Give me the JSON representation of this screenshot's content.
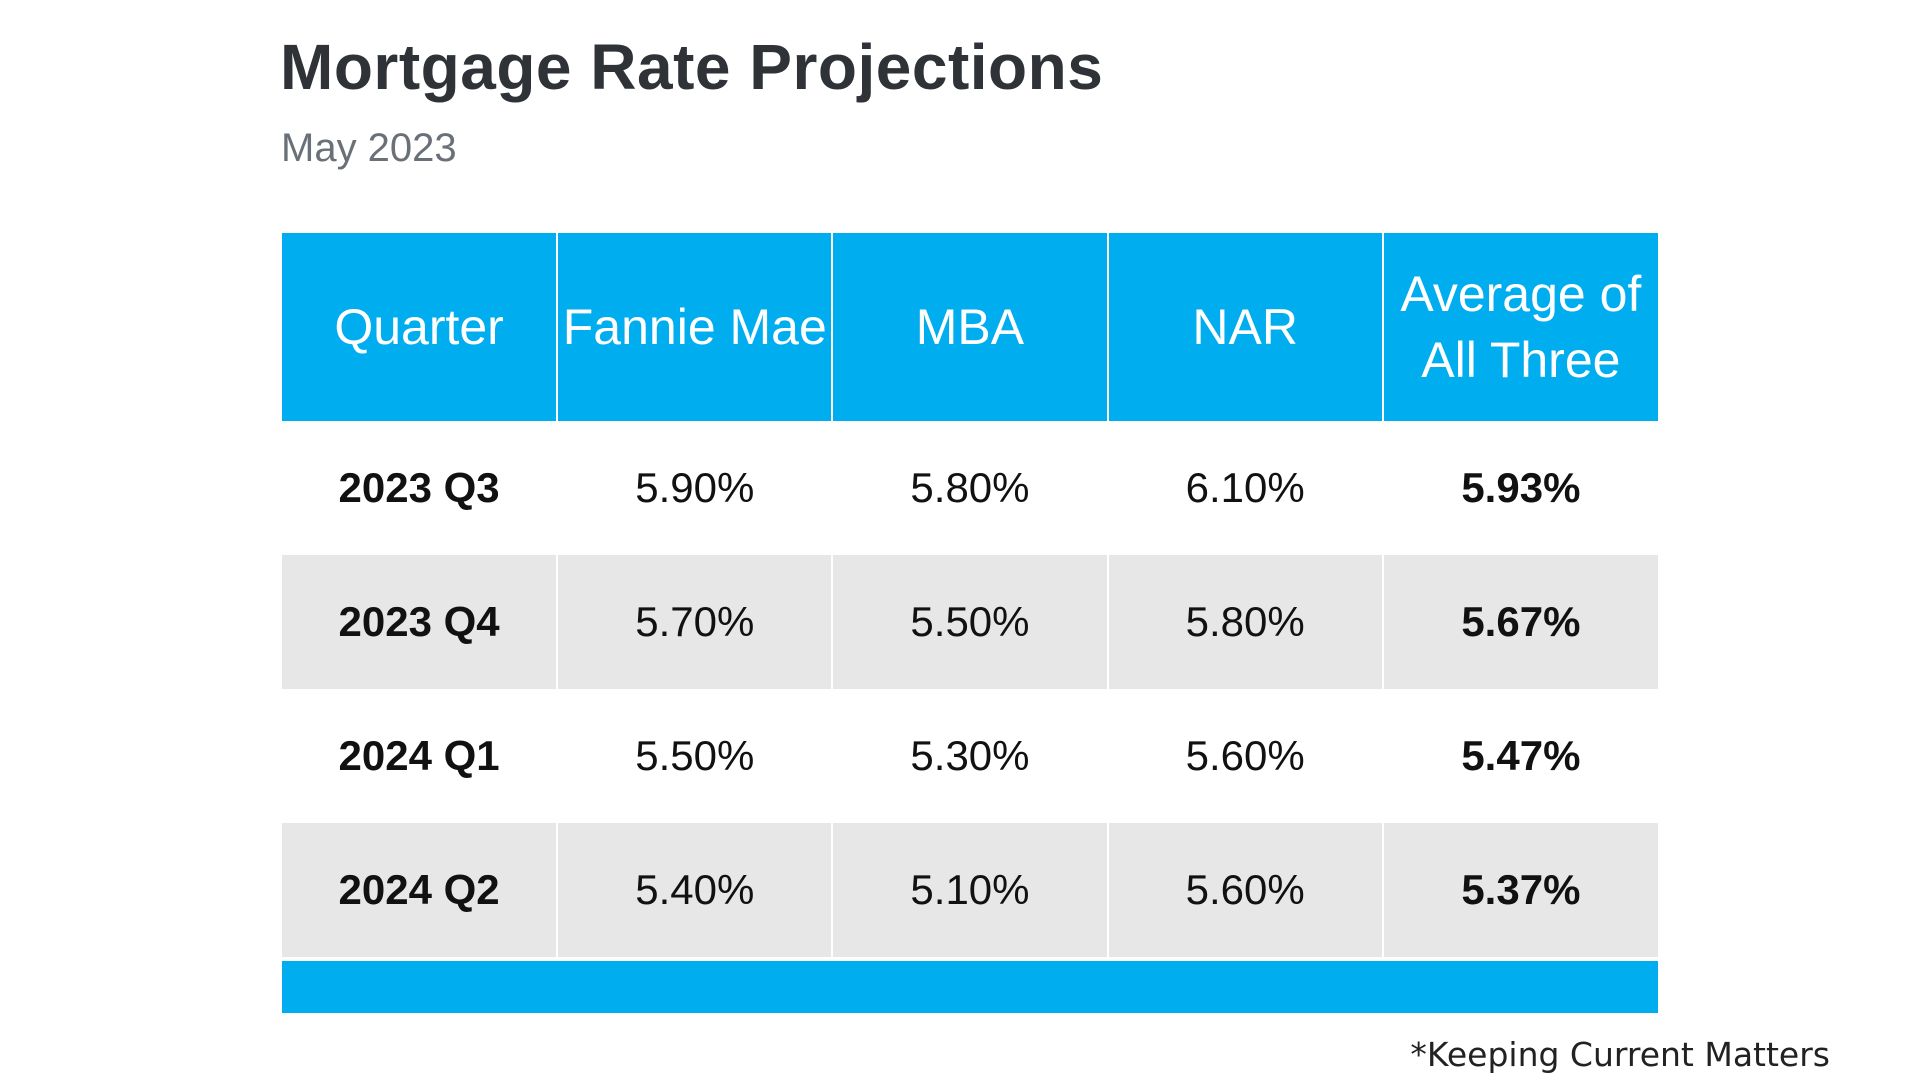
{
  "title": "Mortgage Rate Projections",
  "subtitle": "May 2023",
  "source": "*Keeping Current Matters",
  "colors": {
    "header": "#00aeef",
    "shaded_row": "#e8e7e7",
    "title": "#2f3337",
    "subtitle": "#6a7078"
  },
  "chart_data": {
    "type": "table",
    "title": "Mortgage Rate Projections",
    "subtitle": "May 2023",
    "columns": [
      "Quarter",
      "Fannie Mae",
      "MBA",
      "NAR",
      "Average of All Three"
    ],
    "rows": [
      [
        "2023 Q3",
        "5.90%",
        "5.80%",
        "6.10%",
        "5.93%"
      ],
      [
        "2023 Q4",
        "5.70%",
        "5.50%",
        "5.80%",
        "5.67%"
      ],
      [
        "2024 Q1",
        "5.50%",
        "5.30%",
        "5.60%",
        "5.47%"
      ],
      [
        "2024 Q2",
        "5.40%",
        "5.10%",
        "5.60%",
        "5.37%"
      ]
    ]
  }
}
